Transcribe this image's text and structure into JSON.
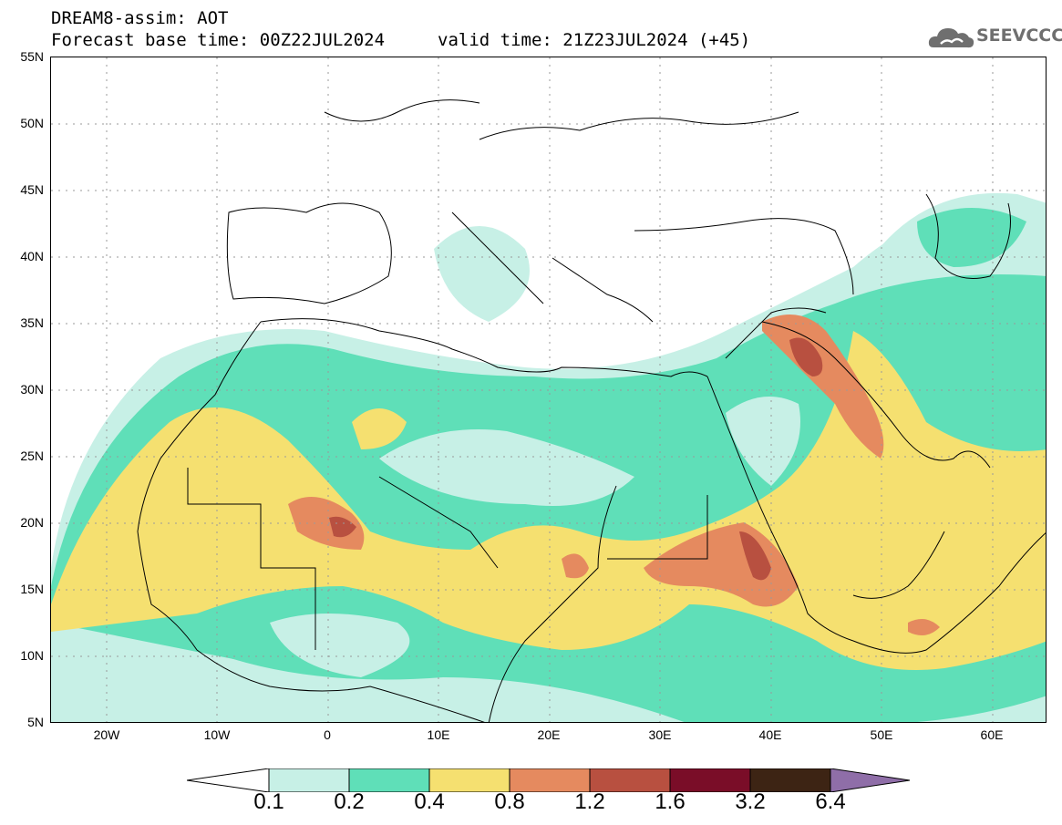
{
  "header": {
    "title": "DREAM8-assim: AOT",
    "base_time": "Forecast base time: 00Z22JUL2024",
    "valid_time": "valid time: 21Z23JUL2024 (+45)"
  },
  "logo": {
    "text": "SEEVCCC",
    "icon": "cloud-logo-icon"
  },
  "map": {
    "lat_labels": [
      "55N",
      "50N",
      "45N",
      "40N",
      "35N",
      "30N",
      "25N",
      "20N",
      "15N",
      "10N",
      "5N"
    ],
    "lon_labels": [
      "20W",
      "10W",
      "0",
      "10E",
      "20E",
      "30E",
      "40E",
      "50E",
      "60E"
    ],
    "lon_range": [
      -25,
      65
    ],
    "lat_range": [
      5,
      55
    ],
    "field": "AOT"
  },
  "colorbar": {
    "labels": [
      "0.1",
      "0.2",
      "0.4",
      "0.8",
      "1.2",
      "1.6",
      "3.2",
      "6.4"
    ],
    "colors": [
      "#ffffff",
      "#c7f0e6",
      "#5fdfb8",
      "#f5e070",
      "#e58a5f",
      "#b85040",
      "#7a0d28",
      "#3d2414",
      "#8f6ea8"
    ]
  }
}
